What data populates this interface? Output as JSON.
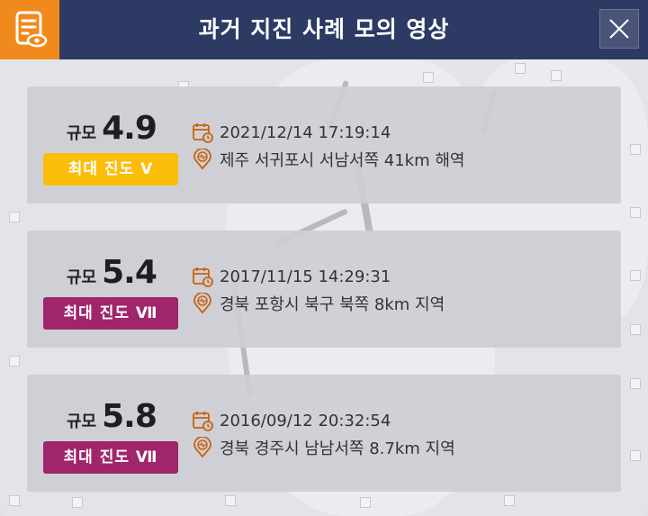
{
  "window": {
    "title": "과거 지진 사례 모의 영상",
    "app_icon": "document-eye-icon",
    "close_icon": "close-icon"
  },
  "colors": {
    "titlebar": "#2d3a64",
    "app_icon_bg": "#f18a1c",
    "badge_v": "#fcbd0a",
    "badge_vii": "#a0266b",
    "icon_orange": "#c8620e"
  },
  "events": [
    {
      "magnitude_label": "규모",
      "magnitude": "4.9",
      "intensity": "최대 진도 Ⅴ",
      "intensity_color": "yellow",
      "datetime": "2021/12/14 17:19:14",
      "location": "제주 서귀포시 서남서쪽 41km 해역"
    },
    {
      "magnitude_label": "규모",
      "magnitude": "5.4",
      "intensity": "최대 진도 Ⅶ",
      "intensity_color": "purple",
      "datetime": "2017/11/15 14:29:31",
      "location": "경북 포항시 북구 북쪽 8km 지역"
    },
    {
      "magnitude_label": "규모",
      "magnitude": "5.8",
      "intensity": "최대 진도 Ⅶ",
      "intensity_color": "purple",
      "datetime": "2016/09/12 20:32:54",
      "location": "경북 경주시 남남서쪽 8.7km 지역"
    }
  ]
}
